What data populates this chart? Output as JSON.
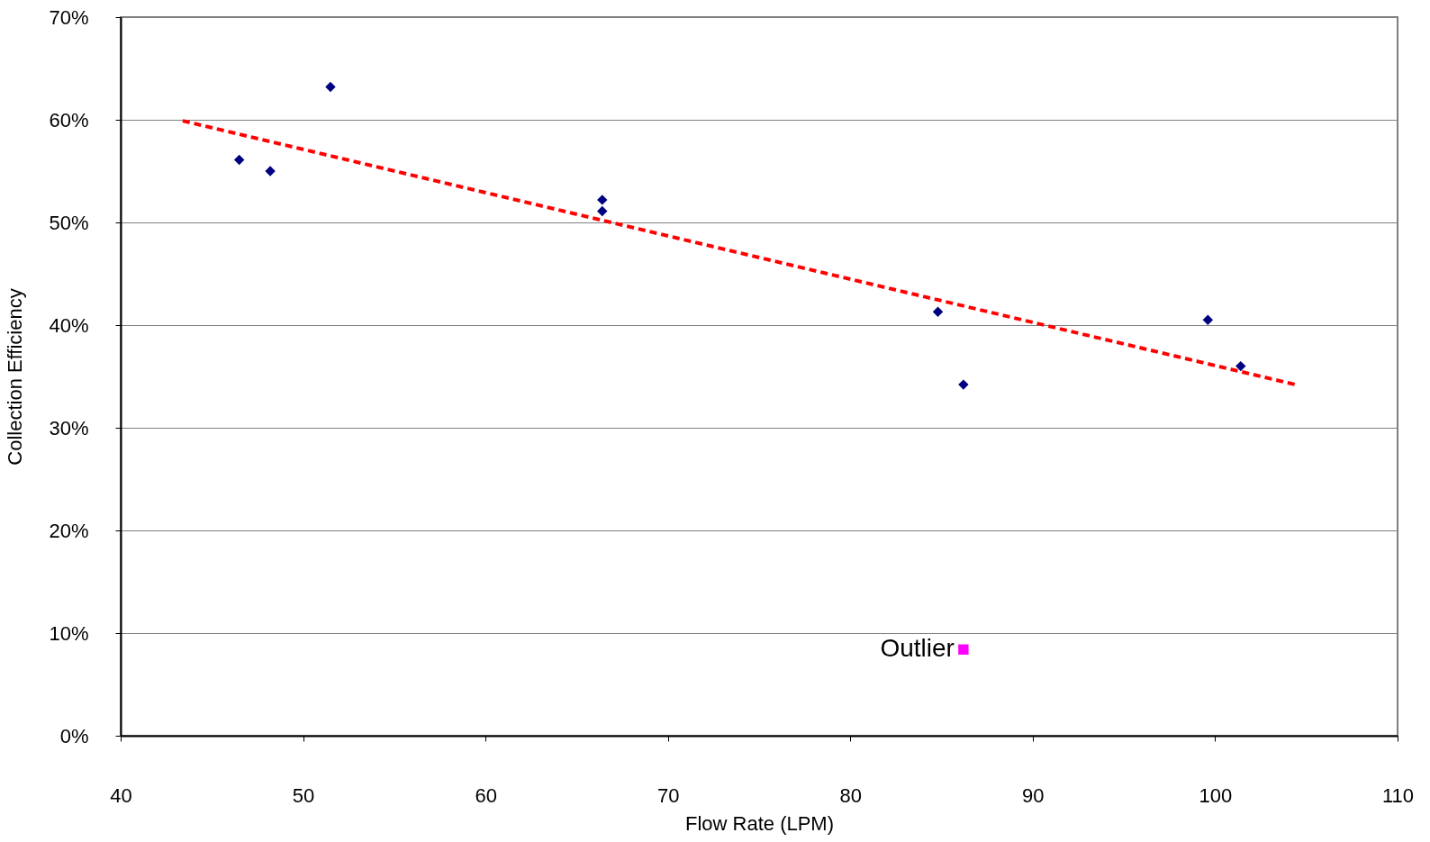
{
  "chart_data": {
    "type": "scatter",
    "xlabel": "Flow Rate (LPM)",
    "ylabel": "Collection Efficiency",
    "xlim": [
      40,
      110
    ],
    "xticks": [
      40,
      50,
      60,
      70,
      80,
      90,
      100,
      110
    ],
    "ylim": [
      0,
      70
    ],
    "yticks": [
      {
        "value": 0,
        "label": "0%"
      },
      {
        "value": 10,
        "label": "10%"
      },
      {
        "value": 20,
        "label": "20%"
      },
      {
        "value": 30,
        "label": "30%"
      },
      {
        "value": 40,
        "label": "40%"
      },
      {
        "value": 50,
        "label": "50%"
      },
      {
        "value": 60,
        "label": "60%"
      },
      {
        "value": 70,
        "label": "70%"
      }
    ],
    "grid": "y",
    "series": [
      {
        "marker": "diamond",
        "color": "#000080",
        "x": [
          46.5,
          48.2,
          51.5,
          66.4,
          66.4,
          84.8,
          86.2,
          99.6,
          101.4
        ],
        "values": [
          56.1,
          55.0,
          63.2,
          52.2,
          51.1,
          41.3,
          34.2,
          40.5,
          36.0
        ]
      },
      {
        "marker": "square",
        "color": "#ff00ff",
        "x": [
          86.2
        ],
        "values": [
          8.4
        ]
      },
      {
        "type": "line",
        "marker": "none",
        "line_style": "dashed",
        "color": "#ff0000",
        "x": [
          43.4,
          104.4
        ],
        "values": [
          59.9,
          34.2
        ]
      }
    ],
    "annotations": [
      {
        "text": "Outlier",
        "x": 86.2,
        "y": 8.4
      }
    ]
  }
}
